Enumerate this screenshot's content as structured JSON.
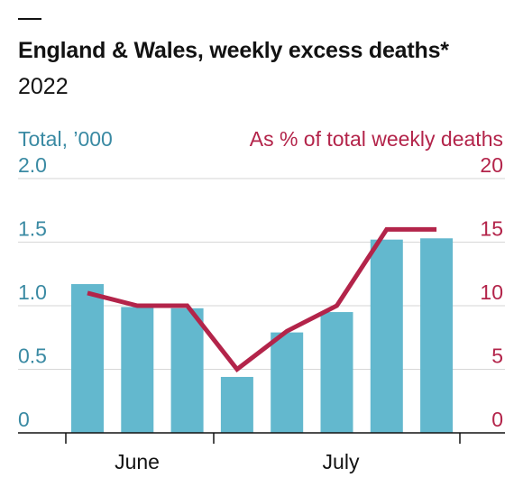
{
  "header": {
    "title": "England & Wales, weekly excess deaths*",
    "subtitle": "2022"
  },
  "colors": {
    "bars": "#63b8ce",
    "line": "#b3244a",
    "left_axis_text": "#3a8aa3",
    "right_axis_text": "#b3244a",
    "grid": "#d6d6d6",
    "axis": "#121212"
  },
  "chart_data": {
    "type": "bar",
    "title": "England & Wales, weekly excess deaths*",
    "subtitle": "2022",
    "weeks": 8,
    "series": [
      {
        "name": "Total, ’000",
        "type": "bar",
        "axis": "left",
        "values": [
          1.17,
          0.99,
          0.98,
          0.44,
          0.79,
          0.95,
          1.52,
          1.53
        ]
      },
      {
        "name": "As % of total weekly deaths",
        "type": "line",
        "axis": "right",
        "values": [
          11,
          10,
          10,
          5,
          8,
          10,
          16,
          16
        ]
      }
    ],
    "left_axis": {
      "label": "Total, ’000",
      "ticks": [
        "0",
        "0.5",
        "1.0",
        "1.5",
        "2.0"
      ],
      "ylim": [
        0,
        2.0
      ]
    },
    "right_axis": {
      "label": "As % of total weekly deaths",
      "ticks": [
        "0",
        "5",
        "10",
        "15",
        "20"
      ],
      "ylim": [
        0,
        20
      ]
    },
    "x_labels": [
      "June",
      "July"
    ],
    "grid": true
  }
}
